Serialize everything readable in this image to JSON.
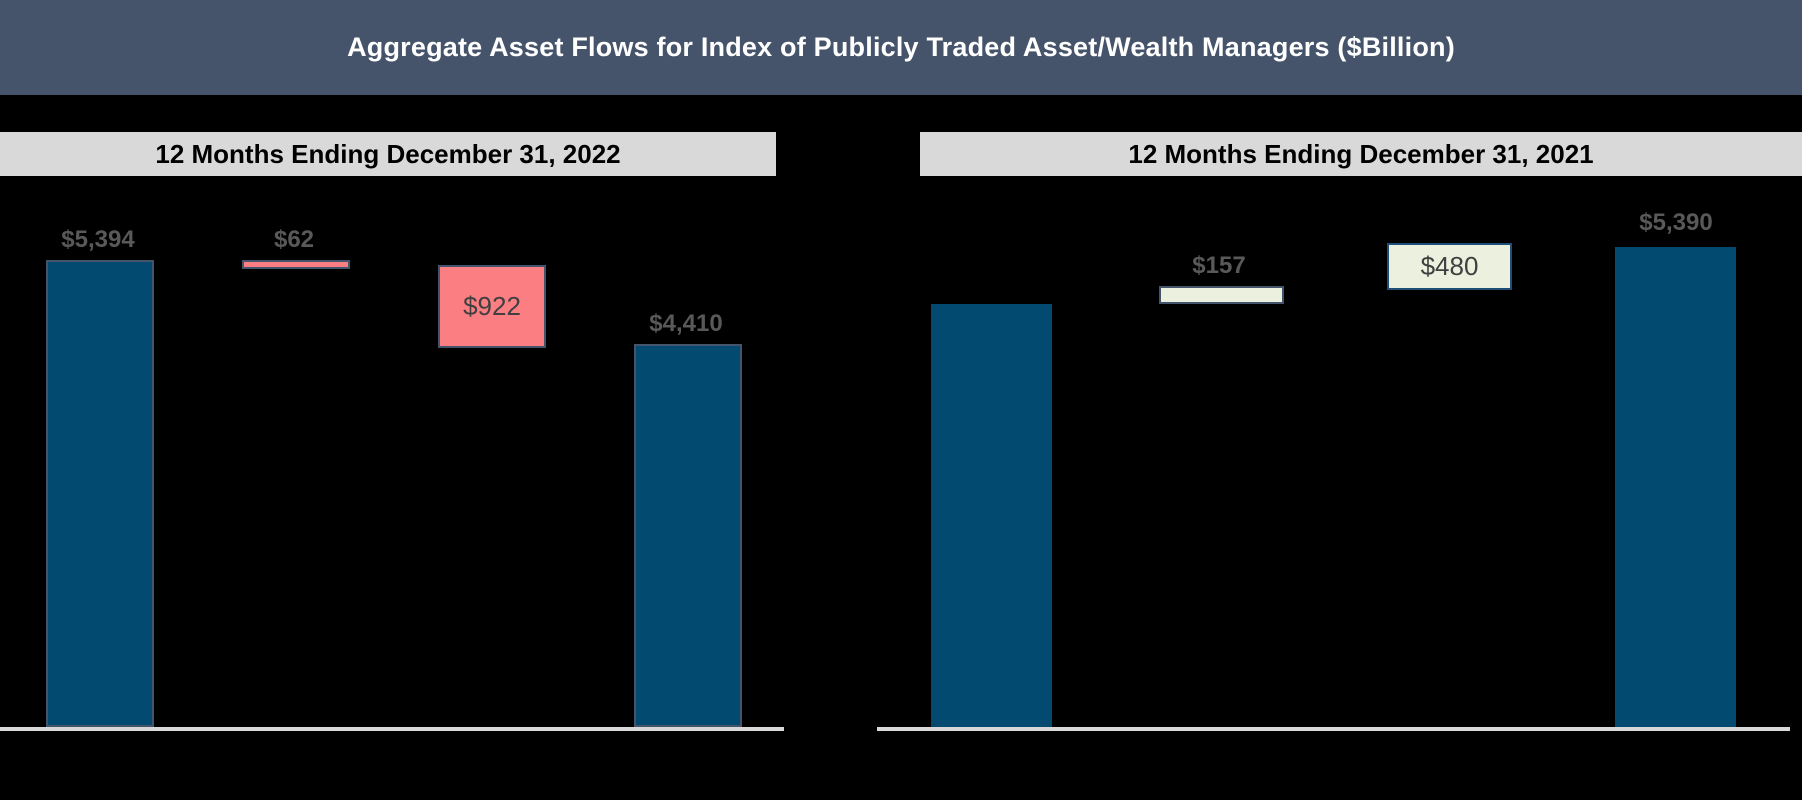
{
  "title": "Aggregate Asset Flows for Index of Publicly Traded Asset/Wealth Managers ($Billion)",
  "colors": {
    "banner_bg": "#45546A",
    "banner_text": "#FFFFFF",
    "subheader_bg": "#D9D9D9",
    "subheader_text": "#000000",
    "axis_line": "#D9D9D9",
    "dark_bar": "#034A70",
    "decrease_bar": "#FB7E82",
    "increase_bar": "#EBF1DE",
    "slate_border": "#44546A",
    "navy_border": "#1F4E79",
    "outside_label": "#595959",
    "inside_label": "#404040",
    "background": "#000000"
  },
  "chart_data": {
    "type": "waterfall",
    "title": "Aggregate Asset Flows for Index of Publicly Traded Asset/Wealth Managers ($Billion)",
    "legend": "none",
    "grid": "off",
    "panels": [
      {
        "header": "12 Months Ending December 31, 2022",
        "ylim": [
          0,
          6360
        ],
        "bars": [
          {
            "name": "beginning-aum-bar",
            "label": "$5,394",
            "value": 5394,
            "lo": 0,
            "hi": 5394,
            "fill": "#034A70",
            "border": "#44546A",
            "label_pos": "above"
          },
          {
            "name": "net-flows-bar",
            "label": "$62",
            "value": -62,
            "lo": 5332,
            "hi": 5394,
            "fill": "#FB7E82",
            "border": "#44546A",
            "label_pos": "above"
          },
          {
            "name": "market-change-bar",
            "label": "$922",
            "value": -922,
            "lo": 4410,
            "hi": 5332,
            "fill": "#FB7E82",
            "border": "#44546A",
            "label_pos": "inside"
          },
          {
            "name": "ending-aum-bar",
            "label": "$4,410",
            "value": 4410,
            "lo": 0,
            "hi": 4410,
            "fill": "#034A70",
            "border": "#44546A",
            "label_pos": "above"
          }
        ]
      },
      {
        "header": "12 Months Ending December 31, 2021",
        "ylim": [
          0,
          6130
        ],
        "bars": [
          {
            "name": "beginning-aum-bar",
            "label": "",
            "value": 4753,
            "lo": 0,
            "hi": 4753,
            "fill": "#034A70",
            "border": null,
            "label_pos": "none"
          },
          {
            "name": "net-flows-bar",
            "label": "$157",
            "value": 157,
            "lo": 4753,
            "hi": 4910,
            "fill": "#EBF1DE",
            "border": "#44546A",
            "label_pos": "above"
          },
          {
            "name": "market-change-bar",
            "label": "$480",
            "value": 480,
            "lo": 4910,
            "hi": 5390,
            "fill": "#EBF1DE",
            "border": "#1F4E79",
            "label_pos": "inside"
          },
          {
            "name": "ending-aum-bar",
            "label": "$5,390",
            "value": 5390,
            "lo": 0,
            "hi": 5390,
            "fill": "#034A70",
            "border": null,
            "label_pos": "above"
          }
        ]
      }
    ]
  }
}
